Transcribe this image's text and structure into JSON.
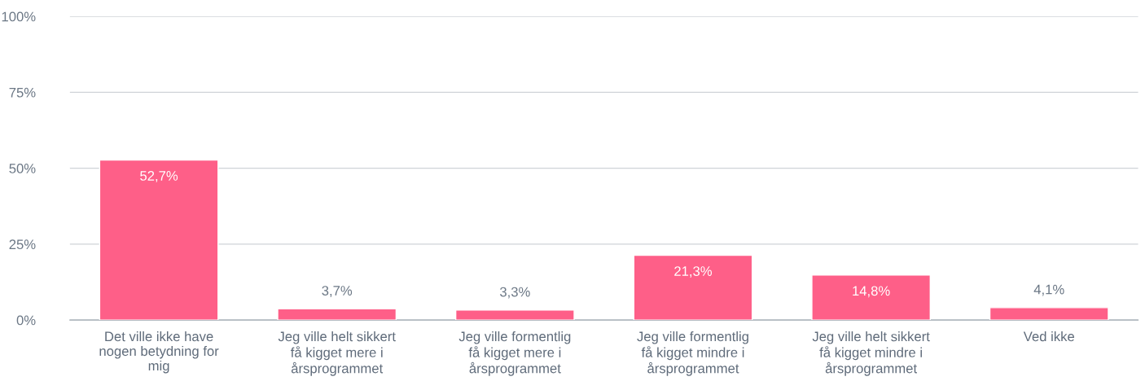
{
  "chart_data": {
    "type": "bar",
    "categories": [
      "Det ville ikke have\nnogen betydning for\nmig",
      "Jeg ville helt sikkert\nfå kigget mere i\nårsprogrammet",
      "Jeg ville formentlig\nfå kigget mere i\nårsprogrammet",
      "Jeg ville formentlig\nfå kigget mindre i\nårsprogrammet",
      "Jeg ville helt sikkert\nfå kigget mindre i\nårsprogrammet",
      "Ved ikke"
    ],
    "values": [
      52.7,
      3.7,
      3.3,
      21.3,
      14.8,
      4.1
    ],
    "value_labels": [
      "52,7%",
      "3,7%",
      "3,3%",
      "21,3%",
      "14,8%",
      "4,1%"
    ],
    "color": "#fe5f88",
    "ylim": [
      0,
      100
    ],
    "yticks": [
      {
        "value": 0,
        "label": "0%"
      },
      {
        "value": 25,
        "label": "25%"
      },
      {
        "value": 50,
        "label": "50%"
      },
      {
        "value": 75,
        "label": "75%"
      },
      {
        "value": 100,
        "label": "100%"
      }
    ],
    "grid": "y"
  }
}
